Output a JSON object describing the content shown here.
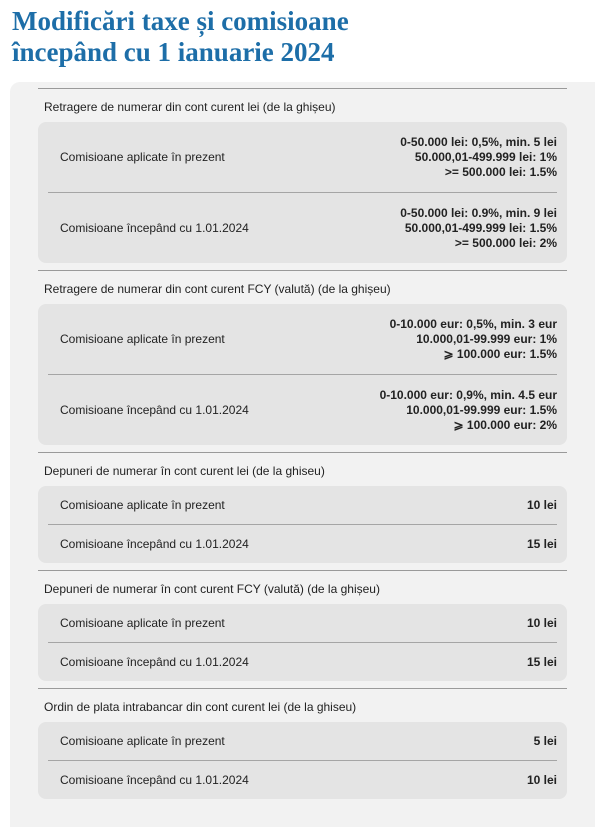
{
  "title": [
    "Modificări taxe și comisioane",
    "începând cu 1 ianuarie 2024"
  ],
  "sections": [
    {
      "heading": "Retragere de numerar din cont curent lei (de la ghișeu)",
      "rows": [
        {
          "label": "Comisioane aplicate în prezent",
          "value": [
            "0-50.000 lei: 0,5%, min. 5 lei",
            "50.000,01-499.999 lei: 1%",
            ">= 500.000 lei: 1.5%"
          ]
        },
        {
          "label": "Comisioane începând cu 1.01.2024",
          "value": [
            "0-50.000 lei: 0.9%, min. 9 lei",
            "50.000,01-499.999 lei: 1.5%",
            ">= 500.000 lei: 2%"
          ]
        }
      ]
    },
    {
      "heading": "Retragere de numerar din cont curent FCY (valută) (de la ghișeu)",
      "rows": [
        {
          "label": "Comisioane aplicate în prezent",
          "value": [
            "0-10.000 eur: 0,5%, min. 3 eur",
            "10.000,01-99.999 eur: 1%",
            "⩾ 100.000 eur: 1.5%"
          ]
        },
        {
          "label": "Comisioane începând cu 1.01.2024",
          "value": [
            "0-10.000 eur: 0,9%, min. 4.5 eur",
            "10.000,01-99.999  eur: 1.5%",
            "⩾ 100.000 eur: 2%"
          ]
        }
      ]
    },
    {
      "heading": "Depuneri de numerar în cont curent lei (de la ghiseu)",
      "rows": [
        {
          "label": "Comisioane aplicate în prezent",
          "value": [
            "10 lei"
          ]
        },
        {
          "label": "Comisioane începând cu 1.01.2024",
          "value": [
            "15 lei"
          ]
        }
      ]
    },
    {
      "heading": "Depuneri de numerar în cont curent FCY (valută) (de la ghișeu)",
      "rows": [
        {
          "label": "Comisioane aplicate în prezent",
          "value": [
            "10 lei"
          ]
        },
        {
          "label": "Comisioane începând cu 1.01.2024",
          "value": [
            "15 lei"
          ]
        }
      ]
    },
    {
      "heading": "Ordin de plata intrabancar din cont curent lei (de la ghiseu)",
      "rows": [
        {
          "label": "Comisioane aplicate în prezent",
          "value": [
            "5 lei"
          ]
        },
        {
          "label": "Comisioane începând cu 1.01.2024",
          "value": [
            "10 lei"
          ]
        }
      ]
    }
  ]
}
